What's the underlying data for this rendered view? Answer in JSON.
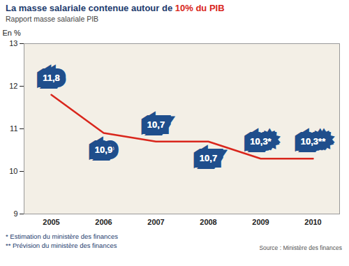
{
  "chart_data": {
    "type": "line",
    "title": "La masse salariale contenue autour de 10% du PIB",
    "subtitle": "Rapport masse salariale PIB",
    "y_label": "En %",
    "categories": [
      "2005",
      "2006",
      "2007",
      "2008",
      "2009",
      "2010"
    ],
    "values": [
      11.8,
      10.9,
      10.7,
      10.7,
      10.3,
      10.3
    ],
    "value_labels": [
      "11,8",
      "10,9",
      "10,7",
      "10,7",
      "10,3*",
      "10,3**"
    ],
    "color": "#d9261c",
    "ylim": [
      9,
      13
    ],
    "yticks": [
      9,
      10,
      11,
      12,
      13
    ],
    "grid": false,
    "data_labels": true,
    "notes": [
      "* Estimation du ministère des finances",
      "** Prévision du ministère des finances"
    ],
    "source": "Source : Ministère des finances"
  }
}
